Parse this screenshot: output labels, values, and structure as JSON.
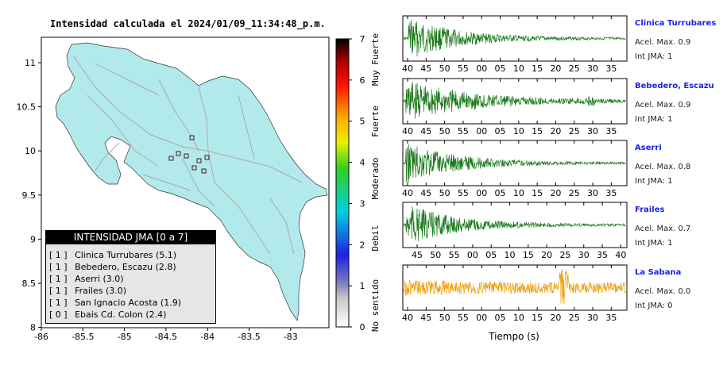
{
  "map": {
    "title": "Intensidad calculada el 2024/01/09_11:34:48_p.m.",
    "x_ticks": [
      "-86",
      "-85.5",
      "-85",
      "-84.5",
      "-84",
      "-83.5",
      "-83"
    ],
    "y_ticks": [
      "11",
      "10.5",
      "10",
      "9.5",
      "9",
      "8.5",
      "8"
    ]
  },
  "colorbar": {
    "ticks": [
      "0",
      "1",
      "2",
      "3",
      "4",
      "5",
      "6",
      "7"
    ],
    "labels": [
      "No sentido",
      "Debil",
      "Moderado",
      "Fuerte",
      "Muy Fuerte"
    ]
  },
  "legend": {
    "title": "INTENSIDAD JMA [0 a 7]",
    "items": [
      {
        "code": "[ 1 ]",
        "label": "Clinica Turrubares (5.1)"
      },
      {
        "code": "[ 1 ]",
        "label": "Bebedero, Escazu (2.8)"
      },
      {
        "code": "[ 1 ]",
        "label": "Aserri (3.0)"
      },
      {
        "code": "[ 1 ]",
        "label": "Frailes (3.0)"
      },
      {
        "code": "[ 1 ]",
        "label": "San Ignacio Acosta (1.9)"
      },
      {
        "code": "[ 0 ]",
        "label": "Ebais Cd. Colon (2.4)"
      }
    ]
  },
  "stations": [
    {
      "name": "Clinica Turrubares",
      "acel": "Acel. Max. 0.9",
      "jma": "Int JMA: 1",
      "color": "#1a7a1a",
      "ticks": [
        "40",
        "45",
        "50",
        "55",
        "00",
        "05",
        "10",
        "15",
        "20",
        "25",
        "30",
        "35"
      ],
      "tick_start": 40
    },
    {
      "name": "Bebedero, Escazu",
      "acel": "Acel. Max. 0.9",
      "jma": "Int JMA: 1",
      "color": "#1a7a1a",
      "ticks": [
        "40",
        "45",
        "50",
        "55",
        "00",
        "05",
        "10",
        "15",
        "20",
        "25",
        "30",
        "35"
      ],
      "tick_start": 38
    },
    {
      "name": "Aserri",
      "acel": "Acel. Max. 0.8",
      "jma": "Int JMA: 1",
      "color": "#1a7a1a",
      "ticks": [
        "40",
        "45",
        "50",
        "55",
        "00",
        "05",
        "10",
        "15",
        "20",
        "25",
        "30",
        "35"
      ],
      "tick_start": 38
    },
    {
      "name": "Frailes",
      "acel": "Acel. Max. 0.7",
      "jma": "Int JMA: 1",
      "color": "#1a7a1a",
      "ticks": [
        "45",
        "50",
        "55",
        "00",
        "05",
        "10",
        "15",
        "20",
        "25",
        "30",
        "35",
        "40"
      ],
      "tick_start": 44
    },
    {
      "name": "La Sabana",
      "acel": "Acel. Max. 0.0",
      "jma": "Int JMA: 0",
      "color": "#f0a010",
      "ticks": [
        "40",
        "45",
        "50",
        "55",
        "00",
        "05",
        "10",
        "15",
        "20",
        "25",
        "30",
        "35"
      ],
      "tick_start": 40
    }
  ],
  "xlabel": "Tiempo (s)",
  "chart_data": {
    "type": "line",
    "title": "Intensidad calculada el 2024/01/09_11:34:48_p.m.",
    "xlabel": "Tiempo (s)",
    "ylabel": "",
    "series": [
      {
        "name": "Clinica Turrubares",
        "acel_max": 0.9,
        "int_jma": 1
      },
      {
        "name": "Bebedero, Escazu",
        "acel_max": 0.9,
        "int_jma": 1
      },
      {
        "name": "Aserri",
        "acel_max": 0.8,
        "int_jma": 1
      },
      {
        "name": "Frailes",
        "acel_max": 0.7,
        "int_jma": 1
      },
      {
        "name": "La Sabana",
        "acel_max": 0.0,
        "int_jma": 0
      }
    ],
    "map_xlim": [
      -86,
      -82.6
    ],
    "map_ylim": [
      8,
      11.3
    ],
    "colorbar_range": [
      0,
      7
    ]
  }
}
